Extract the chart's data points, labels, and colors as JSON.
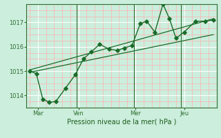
{
  "title": "",
  "xlabel": "Pression niveau de la mer( hPa )",
  "ylabel": "",
  "bg_color": "#cceedd",
  "grid_major_color": "#ffffff",
  "grid_minor_color": "#ffb0b0",
  "line_color": "#1a6b2a",
  "tick_color": "#2d6e2d",
  "axis_label_color": "#1a5c1a",
  "x_tick_labels": [
    "Mar",
    "Ven",
    "Mer",
    "Jeu"
  ],
  "x_tick_positions": [
    0.5,
    3.0,
    6.5,
    9.5
  ],
  "ylim": [
    1013.5,
    1017.75
  ],
  "xlim": [
    -0.2,
    11.5
  ],
  "yticks": [
    1014,
    1015,
    1016,
    1017
  ],
  "line1_x": [
    0,
    0.4,
    0.8,
    1.2,
    1.6,
    2.2,
    2.8,
    3.3,
    3.8,
    4.3,
    4.9,
    5.4,
    5.8,
    6.3,
    6.8,
    7.2,
    7.7,
    8.2,
    8.6,
    9.0,
    9.5,
    10.2,
    10.8,
    11.3
  ],
  "line1_y": [
    1015.0,
    1014.9,
    1013.85,
    1013.72,
    1013.75,
    1014.3,
    1014.85,
    1015.5,
    1015.8,
    1016.1,
    1015.9,
    1015.85,
    1015.95,
    1016.05,
    1016.95,
    1017.05,
    1016.6,
    1017.75,
    1017.15,
    1016.35,
    1016.6,
    1017.05,
    1017.05,
    1017.1
  ],
  "trend1_x": [
    0,
    11.3
  ],
  "trend1_y": [
    1014.95,
    1016.5
  ],
  "trend2_x": [
    0,
    11.3
  ],
  "trend2_y": [
    1015.05,
    1017.15
  ],
  "vlines_x": [
    2.9,
    6.4,
    9.3
  ],
  "marker": "D",
  "markersize": 2.8,
  "linewidth": 1.0
}
